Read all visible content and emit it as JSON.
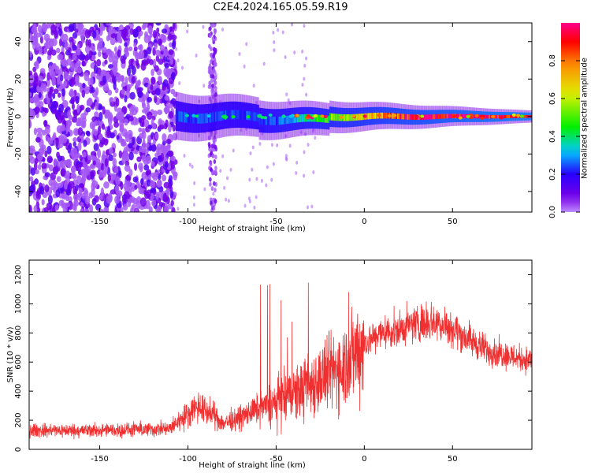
{
  "title": "C2E4.2024.165.05.59.R19",
  "colorbar": {
    "label": "Normalized spectral amplitude",
    "ticks": [
      "0.0",
      "0.2",
      "0.4",
      "0.6",
      "0.8"
    ]
  },
  "chart_data": [
    {
      "type": "heatmap",
      "xlabel": "Height of straight line (km)",
      "ylabel": "Frequency (Hz)",
      "xlim": [
        -190,
        95
      ],
      "ylim": [
        -51,
        50
      ],
      "xticks": [
        -150,
        -100,
        -50,
        0,
        50
      ],
      "yticks": [
        -40,
        -20,
        0,
        20,
        40
      ],
      "colorscale": "rainbow (purple=0 to red/magenta=1)",
      "zlim": [
        0,
        1
      ],
      "features": [
        {
          "region": "noise scatter",
          "x_range": [
            -190,
            -107
          ],
          "freq_range": [
            -50,
            50
          ],
          "amplitude": "0.1-0.2"
        },
        {
          "region": "vertical noise streak",
          "x_range": [
            -88,
            -84
          ],
          "freq_range": [
            -50,
            50
          ],
          "amplitude": "0.1-0.2"
        },
        {
          "region": "signal band",
          "x_range": [
            -107,
            95
          ],
          "freq_center": 0,
          "freq_halfwidth_start": 8,
          "freq_halfwidth_end": 2,
          "amplitude": "0.3-1.0"
        }
      ]
    },
    {
      "type": "line",
      "xlabel": "Height of straight line (km)",
      "ylabel": "SNR (10 * v/v)",
      "xlim": [
        -190,
        95
      ],
      "ylim": [
        0,
        1300
      ],
      "xticks": [
        -150,
        -100,
        -50,
        0,
        50
      ],
      "yticks": [
        0,
        200,
        400,
        600,
        800,
        1000,
        1200
      ],
      "color": "#f03030",
      "series_envelope": {
        "x": [
          -190,
          -150,
          -110,
          -105,
          -100,
          -95,
          -85,
          -80,
          -70,
          -60,
          -50,
          -40,
          -30,
          -20,
          -10,
          0,
          10,
          20,
          30,
          40,
          50,
          60,
          70,
          80,
          90,
          95
        ],
        "y": [
          130,
          130,
          140,
          200,
          240,
          300,
          230,
          180,
          220,
          280,
          320,
          380,
          450,
          520,
          600,
          730,
          800,
          820,
          870,
          880,
          830,
          750,
          680,
          650,
          620,
          610
        ]
      }
    }
  ]
}
